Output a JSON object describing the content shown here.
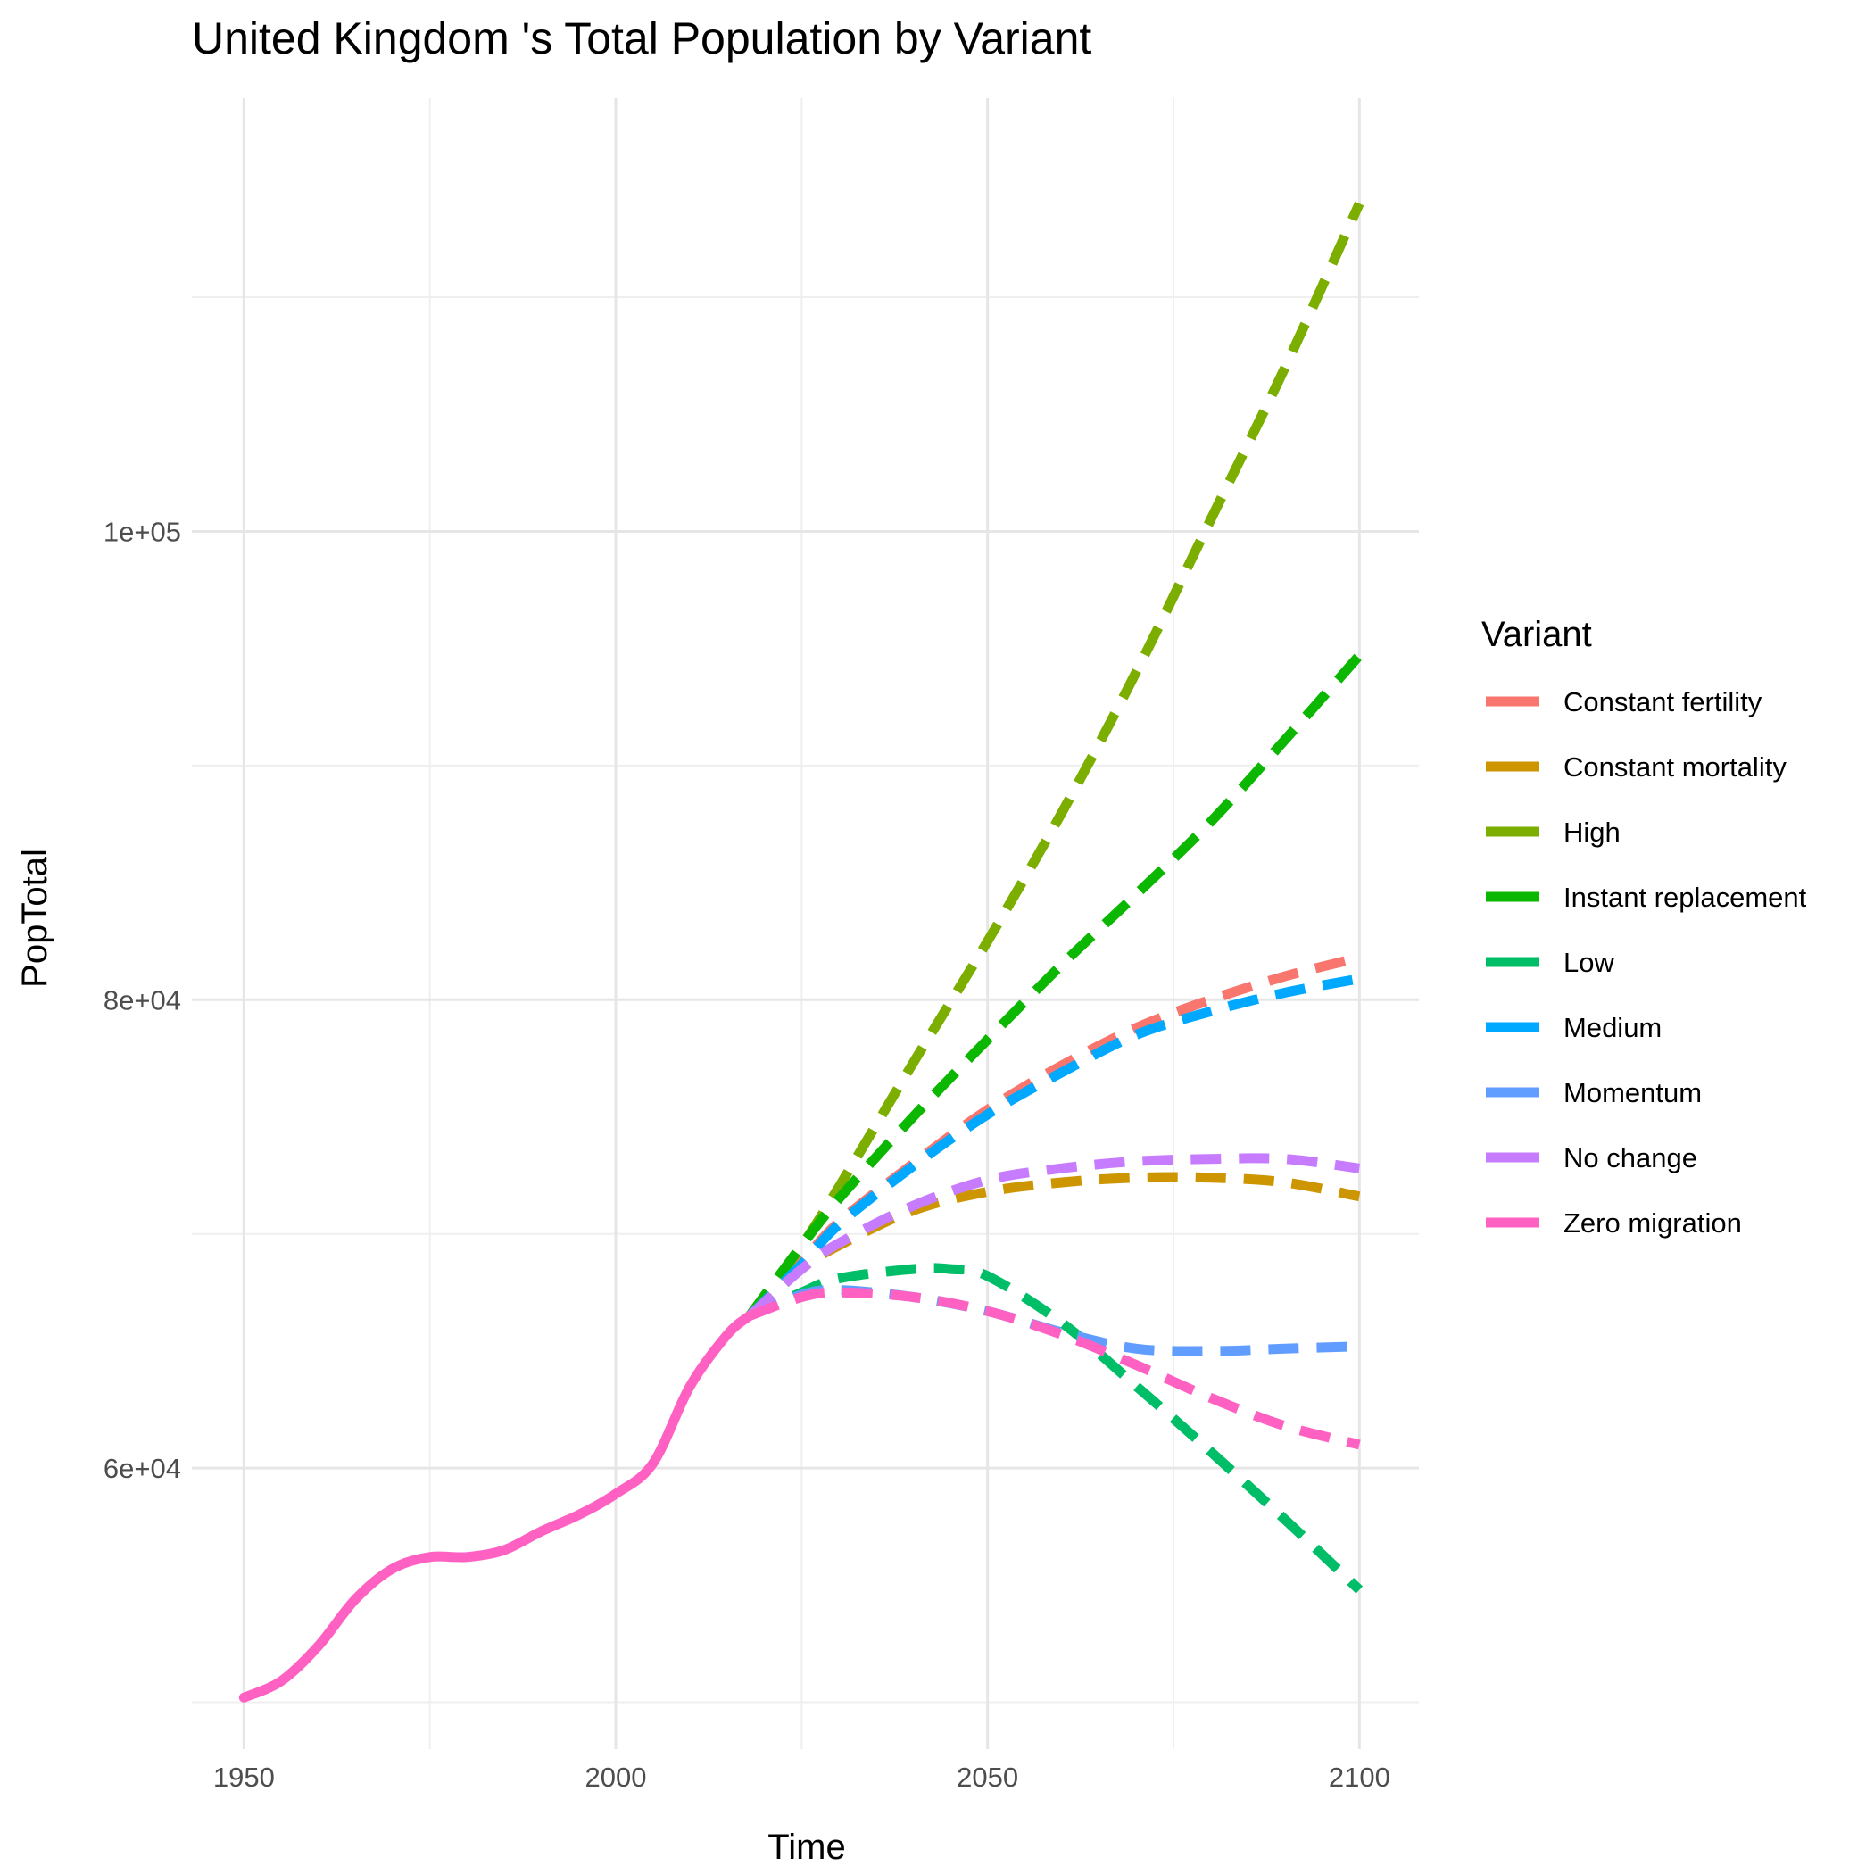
{
  "chart_data": {
    "type": "line",
    "title": "United Kingdom 's Total Population by Variant",
    "xlabel": "Time",
    "ylabel": "PopTotal",
    "xlim": [
      1943,
      2108
    ],
    "ylim": [
      48000,
      118500
    ],
    "x_ticks": [
      1950,
      2000,
      2050,
      2100
    ],
    "x_tick_labels": [
      "1950",
      "2000",
      "2050",
      "2100"
    ],
    "y_ticks": [
      60000,
      80000,
      100000
    ],
    "y_tick_labels": [
      "6e+04",
      "8e+04",
      "1e+05"
    ],
    "y_minor_ticks": [
      50000,
      70000,
      90000,
      110000
    ],
    "x_minor_ticks": [
      1975,
      2025,
      2075
    ],
    "grid": true,
    "legend": {
      "title": "Variant",
      "position": "right"
    },
    "history": {
      "name": "Zero migration",
      "color": "#FF61C3",
      "x": [
        1950,
        1955,
        1960,
        1965,
        1970,
        1975,
        1980,
        1985,
        1990,
        1995,
        2000,
        2005,
        2010,
        2015,
        2018
      ],
      "y": [
        50200,
        50900,
        52400,
        54400,
        55700,
        56200,
        56200,
        56500,
        57300,
        58000,
        58900,
        60200,
        63500,
        65700,
        66500
      ]
    },
    "series": [
      {
        "name": "Constant fertility",
        "color": "#F8766D",
        "x": [
          2018,
          2025,
          2030,
          2040,
          2050,
          2060,
          2070,
          2080,
          2090,
          2100
        ],
        "y": [
          66500,
          68800,
          70500,
          73000,
          75300,
          77200,
          78800,
          80000,
          81000,
          81800
        ]
      },
      {
        "name": "Constant mortality",
        "color": "#CD9600",
        "x": [
          2018,
          2025,
          2030,
          2040,
          2050,
          2060,
          2070,
          2080,
          2090,
          2100
        ],
        "y": [
          66500,
          68500,
          69500,
          71000,
          71800,
          72200,
          72400,
          72400,
          72200,
          71600
        ]
      },
      {
        "name": "High",
        "color": "#7CAE00",
        "x": [
          2018,
          2025,
          2030,
          2040,
          2050,
          2060,
          2070,
          2080,
          2090,
          2100
        ],
        "y": [
          66500,
          69500,
          72000,
          77300,
          82500,
          88000,
          94000,
          100500,
          107000,
          114000
        ]
      },
      {
        "name": "Instant replacement",
        "color": "#0CB702",
        "x": [
          2018,
          2025,
          2030,
          2040,
          2050,
          2060,
          2070,
          2080,
          2090,
          2100
        ],
        "y": [
          66500,
          69500,
          71500,
          75000,
          78300,
          81500,
          84500,
          87600,
          91100,
          94700
        ]
      },
      {
        "name": "Low",
        "color": "#00BE67",
        "x": [
          2018,
          2025,
          2030,
          2040,
          2045,
          2050,
          2060,
          2070,
          2080,
          2090,
          2100
        ],
        "y": [
          66500,
          67500,
          68100,
          68500,
          68500,
          68200,
          66200,
          63500,
          60700,
          57800,
          54800
        ]
      },
      {
        "name": "Medium",
        "color": "#00A9FF",
        "x": [
          2018,
          2025,
          2030,
          2040,
          2050,
          2060,
          2070,
          2080,
          2090,
          2100
        ],
        "y": [
          66500,
          68700,
          70400,
          72900,
          75100,
          76900,
          78500,
          79500,
          80300,
          80900
        ]
      },
      {
        "name": "Momentum",
        "color": "#619CFF",
        "x": [
          2018,
          2025,
          2030,
          2040,
          2050,
          2060,
          2070,
          2080,
          2090,
          2100
        ],
        "y": [
          66500,
          67400,
          67600,
          67300,
          66700,
          65800,
          65100,
          65000,
          65100,
          65200
        ]
      },
      {
        "name": "No change",
        "color": "#C77CFF",
        "x": [
          2018,
          2025,
          2030,
          2040,
          2050,
          2060,
          2070,
          2080,
          2090,
          2100
        ],
        "y": [
          66500,
          68500,
          69600,
          71200,
          72300,
          72800,
          73100,
          73200,
          73200,
          72800
        ]
      },
      {
        "name": "Zero migration",
        "color": "#FF61C3",
        "x": [
          2018,
          2025,
          2030,
          2040,
          2050,
          2060,
          2070,
          2080,
          2090,
          2100
        ],
        "y": [
          66500,
          67300,
          67500,
          67300,
          66700,
          65700,
          64400,
          63000,
          61800,
          61000
        ]
      }
    ]
  }
}
